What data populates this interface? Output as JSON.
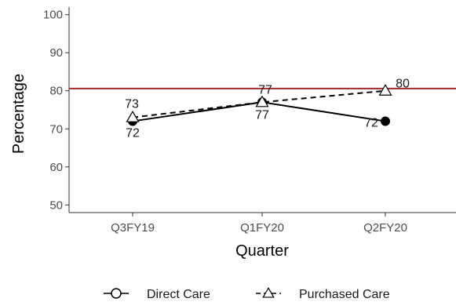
{
  "chart_data": {
    "type": "line",
    "categories": [
      "Q3FY19",
      "Q1FY20",
      "Q2FY20"
    ],
    "series": [
      {
        "name": "Direct Care",
        "values": [
          72,
          77,
          72
        ],
        "labels": [
          "72",
          "77",
          "72"
        ],
        "marker": "filled-circle",
        "line": "solid"
      },
      {
        "name": "Purchased Care",
        "values": [
          73,
          77,
          80
        ],
        "labels": [
          "73",
          "77",
          "80"
        ],
        "marker": "open-triangle",
        "line": "dashed"
      }
    ],
    "reference_line": {
      "value": 80.6,
      "color": "#a52a2a"
    },
    "title": "",
    "xlabel": "Quarter",
    "ylabel": "Percentage",
    "ylim": [
      48,
      102
    ],
    "yticks": [
      50,
      60,
      70,
      80,
      90,
      100
    ],
    "grid": false,
    "legend_position": "bottom"
  }
}
